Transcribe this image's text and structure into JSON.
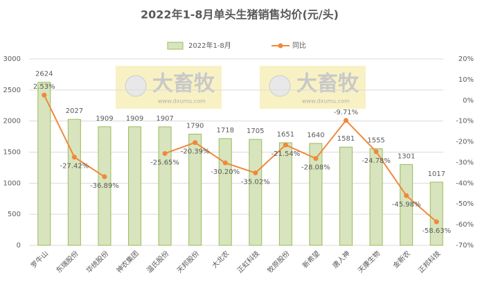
{
  "chart_data": {
    "type": "bar-line",
    "title": "2022年1-8月单头生猪销售均价(元/头)",
    "watermark": {
      "text": "大畜牧",
      "url": "www.dxumu.com"
    },
    "categories": [
      "罗牛山",
      "东瑞股份",
      "华统股份",
      "神农集团",
      "温氏股份",
      "天邦股份",
      "大北农",
      "正虹科技",
      "牧原股份",
      "新希望",
      "唐人神",
      "天康生物",
      "金新农",
      "正邦科技"
    ],
    "series": [
      {
        "name": "2022年1-8月",
        "type": "bar",
        "color": "#d7e4bd",
        "values": [
          2624,
          2027,
          1909,
          1909,
          1907,
          1790,
          1718,
          1705,
          1651,
          1640,
          1581,
          1555,
          1301,
          1017
        ]
      },
      {
        "name": "同比",
        "type": "line",
        "axis": "y2",
        "color": "#f0883a",
        "values": [
          2.53,
          -27.42,
          -36.89,
          null,
          -25.65,
          -20.39,
          -30.2,
          -35.02,
          -21.54,
          -28.08,
          -9.71,
          -24.78,
          -45.98,
          -58.63
        ],
        "value_labels": [
          "2.53%",
          "-27.42%",
          "-36.89%",
          null,
          "-25.65%",
          "-20.39%",
          "-30.20%",
          "-35.02%",
          "-21.54%",
          "-28.08%",
          "-9.71%",
          "-24.78%",
          "-45.98%",
          "-58.63%"
        ]
      }
    ],
    "ylim": [
      0,
      3000
    ],
    "yticks": [
      0,
      500,
      1000,
      1500,
      2000,
      2500,
      3000
    ],
    "y2lim": [
      -70,
      20
    ],
    "y2ticks": [
      {
        "value": 20,
        "label": "20%"
      },
      {
        "value": 10,
        "label": "10%"
      },
      {
        "value": 0,
        "label": "0%"
      },
      {
        "value": -10,
        "label": "-10%"
      },
      {
        "value": -20,
        "label": "-20%"
      },
      {
        "value": -30,
        "label": "-30%"
      },
      {
        "value": -40,
        "label": "-40%"
      },
      {
        "value": -50,
        "label": "-50%"
      },
      {
        "value": -60,
        "label": "-60%"
      },
      {
        "value": -70,
        "label": "-70%"
      }
    ],
    "grid": true
  }
}
